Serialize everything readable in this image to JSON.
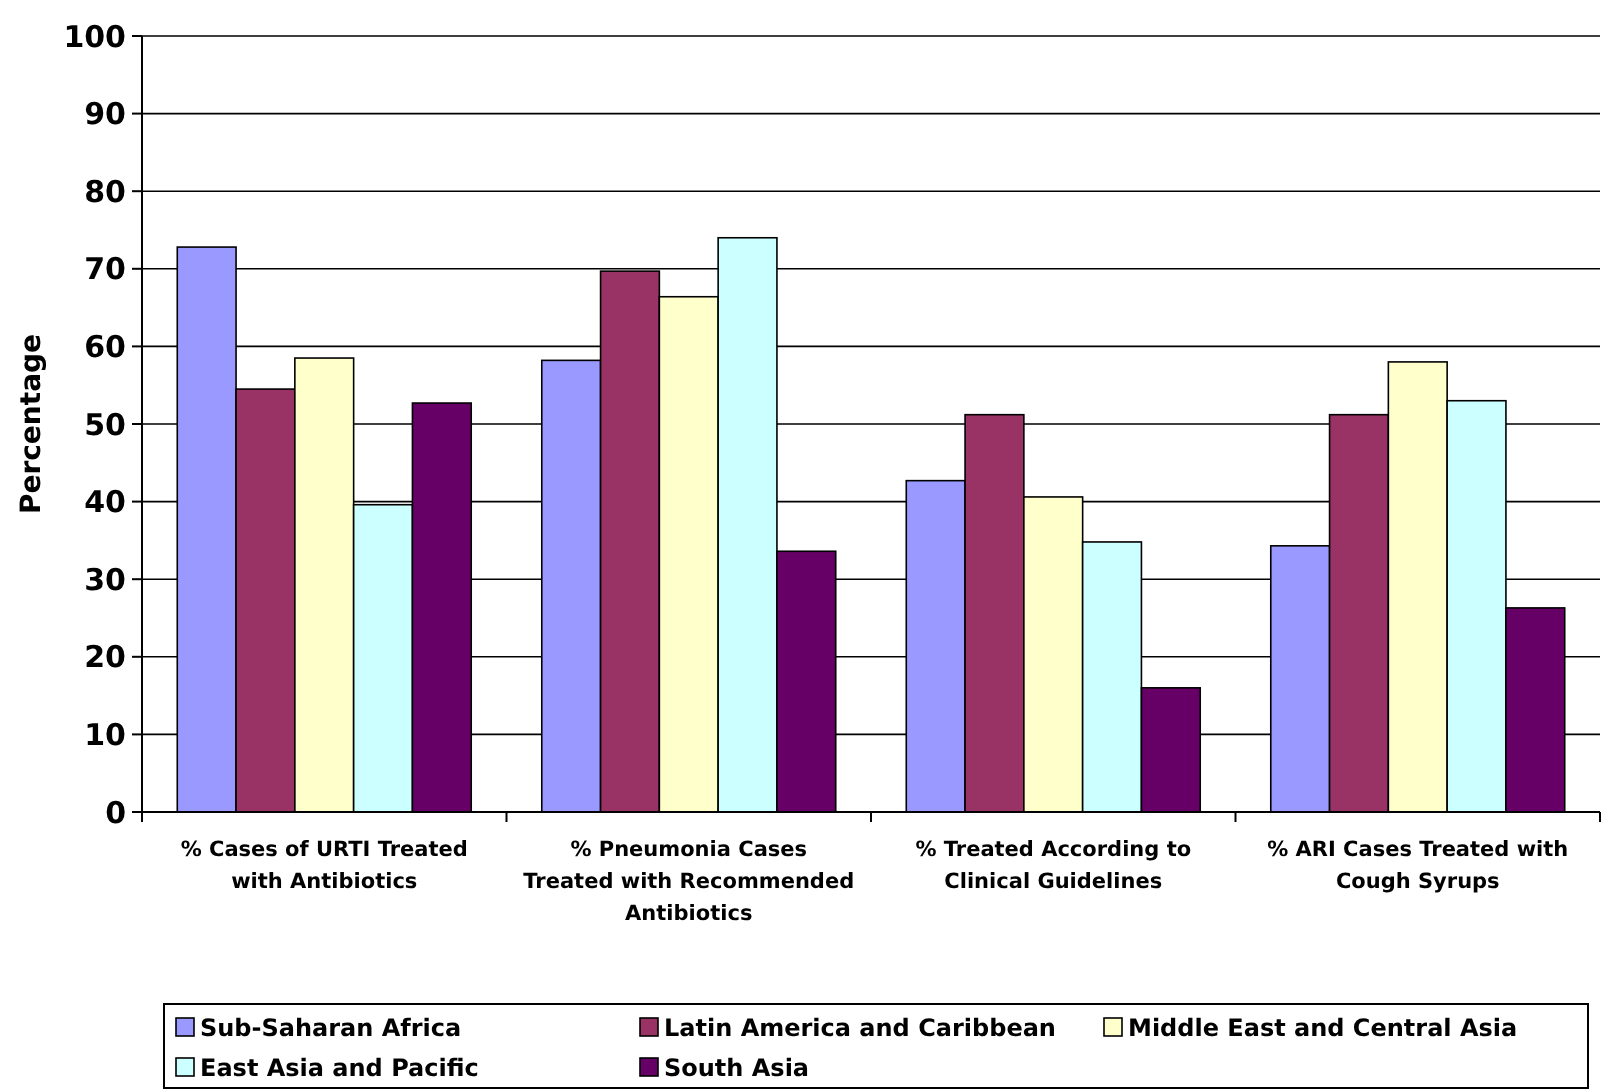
{
  "chart_data": {
    "type": "bar",
    "ylabel": "Percentage",
    "categories": [
      "% Cases of URTI Treated with Antibiotics",
      "% Pneumonia Cases Treated with Recommended Antibiotics",
      "% Treated According to Clinical Guidelines",
      "% ARI Cases Treated with Cough Syrups"
    ],
    "series": [
      {
        "name": "Sub-Saharan Africa",
        "color": "#9999ff",
        "values": [
          72.8,
          58.2,
          42.7,
          34.3
        ]
      },
      {
        "name": "Latin America and Caribbean",
        "color": "#993366",
        "values": [
          54.5,
          69.7,
          51.2,
          51.2
        ]
      },
      {
        "name": "Middle East and Central Asia",
        "color": "#ffffcc",
        "values": [
          58.5,
          66.4,
          40.6,
          58
        ]
      },
      {
        "name": "East Asia and Pacific",
        "color": "#ccffff",
        "values": [
          39.6,
          74,
          34.8,
          53
        ]
      },
      {
        "name": "South Asia",
        "color": "#660066",
        "values": [
          52.7,
          33.6,
          16,
          26.3
        ]
      }
    ],
    "ylim": [
      0,
      100
    ],
    "yticks": [
      0,
      10,
      20,
      30,
      40,
      50,
      60,
      70,
      80,
      90,
      100
    ],
    "grid": "y",
    "legend": "bottom"
  }
}
